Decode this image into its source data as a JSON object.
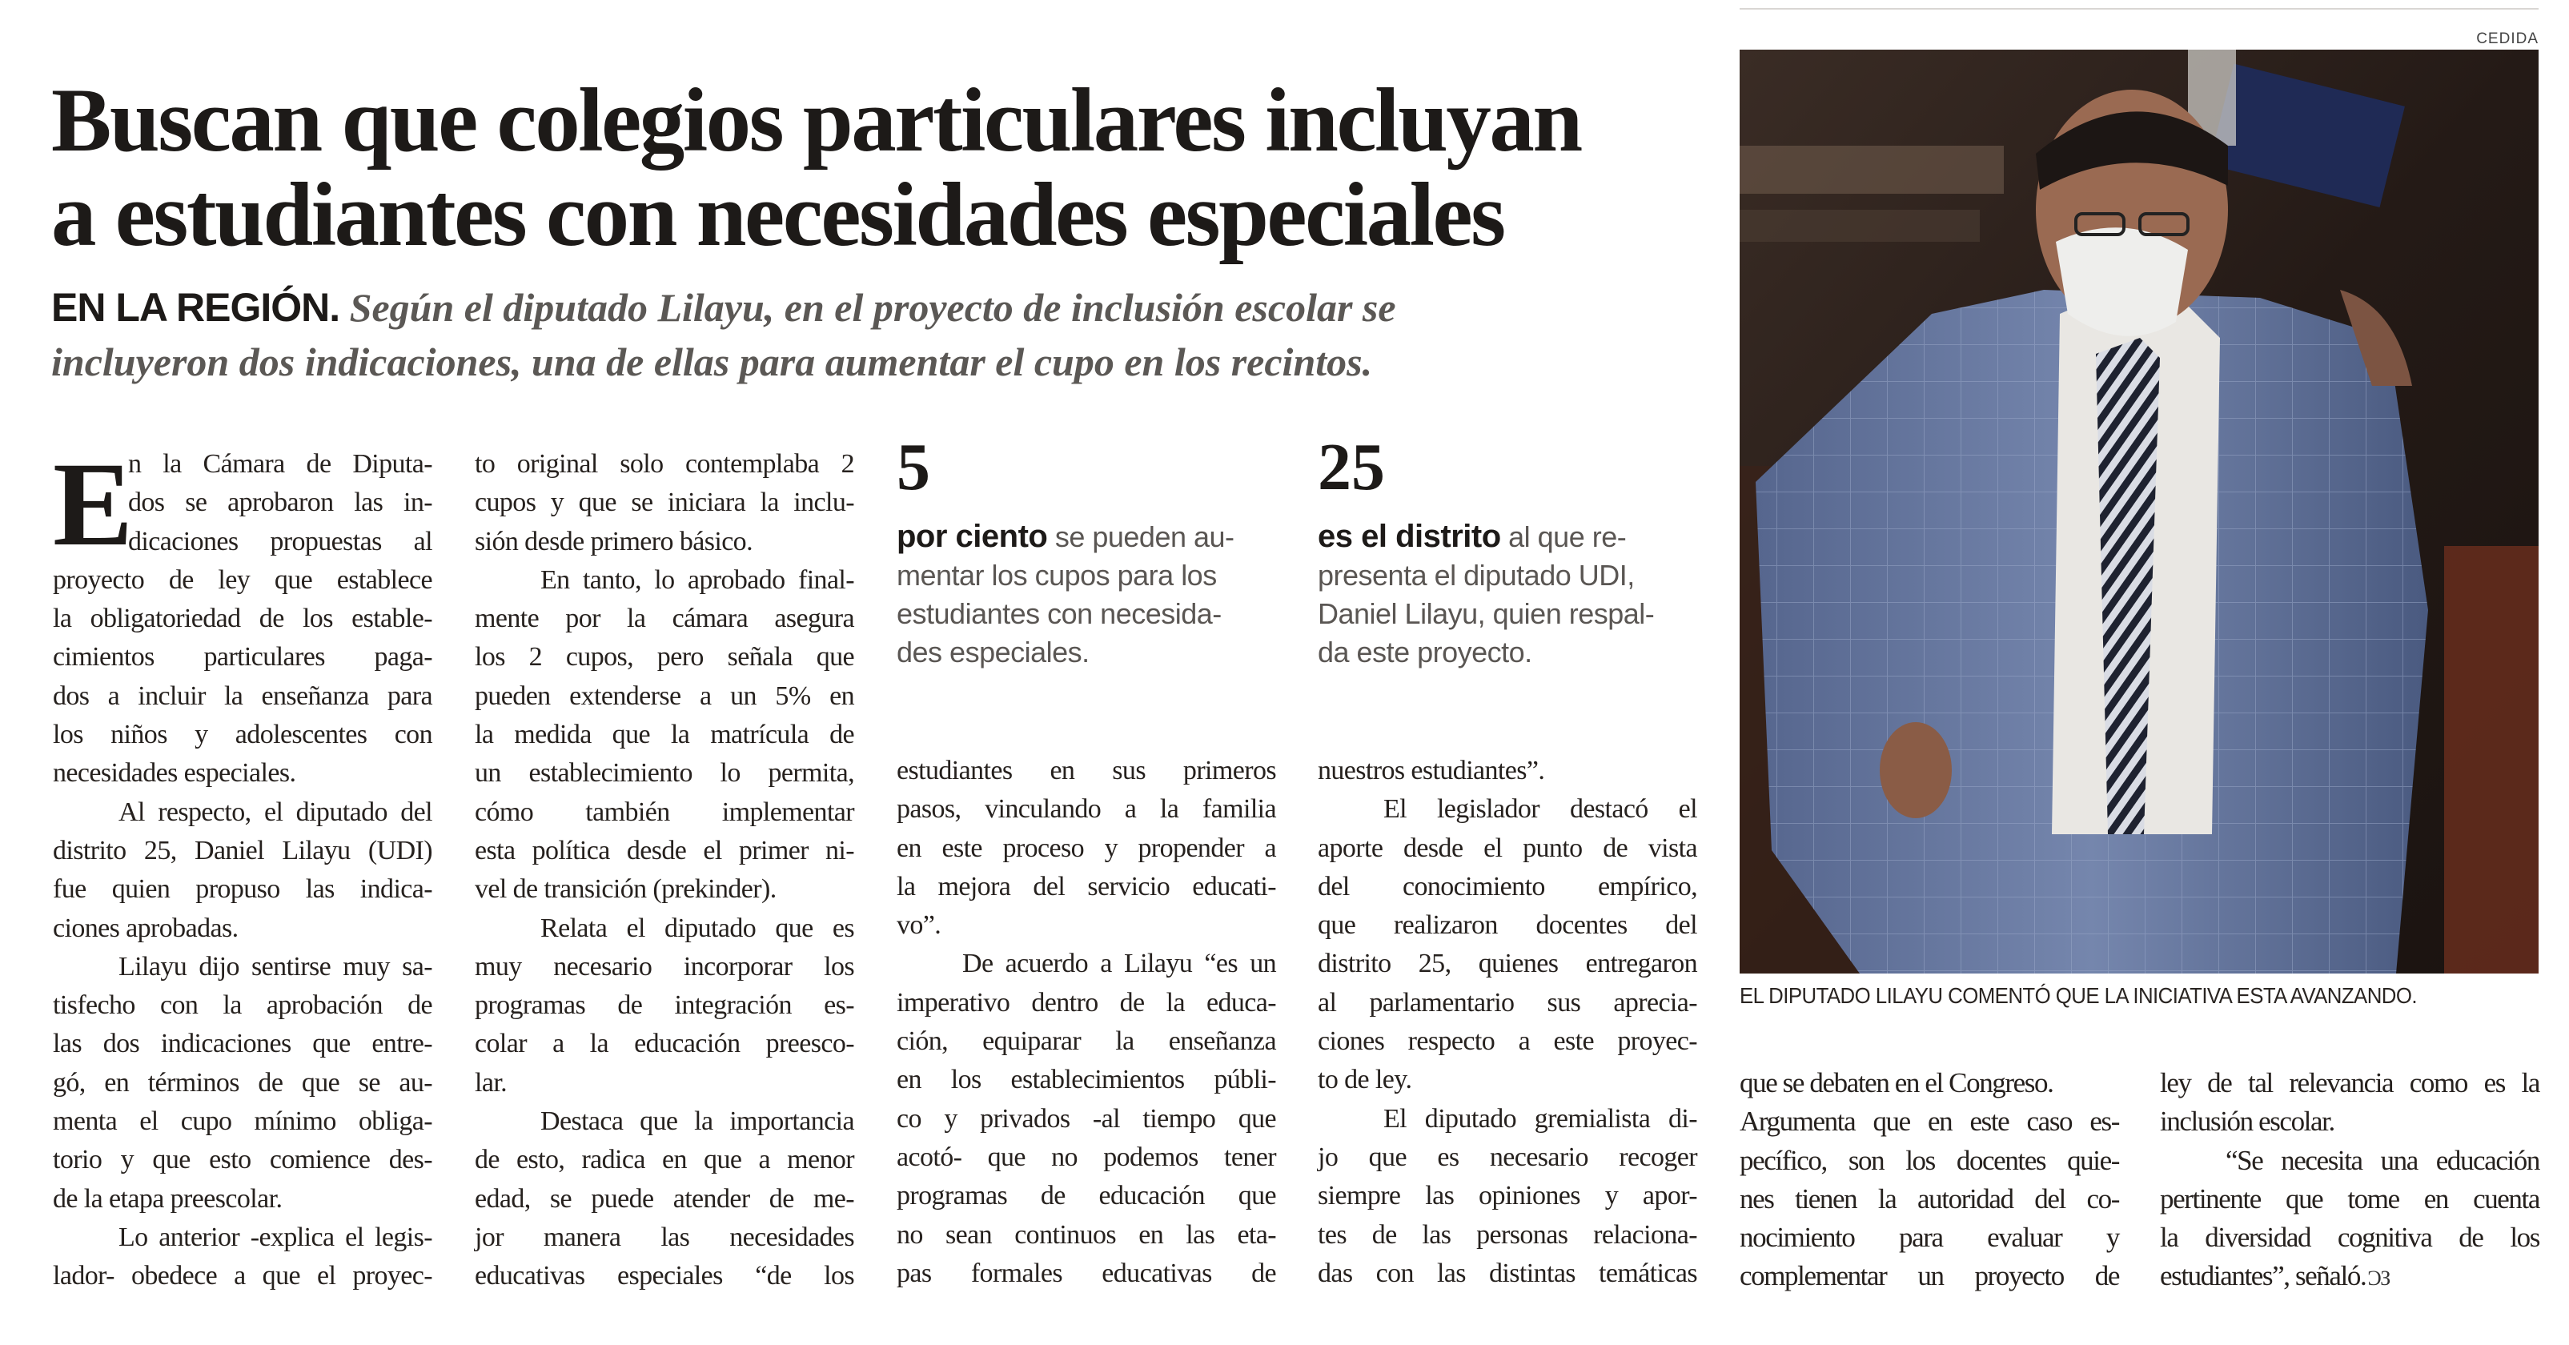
{
  "headline": {
    "lines": [
      "Buscan que colegios particulares incluyan",
      "a estudiantes con necesidades especiales"
    ]
  },
  "deck": {
    "kicker": "EN LA REGIÓN.",
    "line1": " Según el diputado Lilayu, en el proyecto de inclusión escolar se",
    "line2": "incluyeron dos indicaciones, una de ellas para aumentar el cupo en los recintos."
  },
  "photo": {
    "credit": "CEDIDA",
    "caption": "EL DIPUTADO LILAYU COMENTÓ QUE LA INICIATIVA ESTA AVANZANDO.",
    "colors": {
      "background": "#2a201b",
      "suit": "#6a7ba3",
      "carpet": "#6b2e1e"
    }
  },
  "stats": [
    {
      "number": "5",
      "lead": "por ciento",
      "lines": [
        " se pueden au-",
        "mentar los cupos para los",
        "estudiantes con necesida-",
        "des especiales."
      ]
    },
    {
      "number": "25",
      "lead": "es el distrito",
      "lines": [
        " al que re-",
        "presenta el diputado UDI,",
        "Daniel Lilayu, quien respal-",
        "da este proyecto."
      ]
    }
  ],
  "article": {
    "dropcap": "E",
    "columns": [
      {
        "paragraphs": [
          {
            "indent": false,
            "ends": true,
            "lines": [
              "n la Cámara de Diputa-",
              "dos se aprobaron las in-",
              "dicaciones propuestas al",
              "proyecto de ley que establece",
              "la obligatoriedad de los estable-",
              "cimientos particulares paga-",
              "dos a incluir la enseñanza para",
              "los niños y adolescentes con",
              "necesidades especiales."
            ]
          },
          {
            "indent": true,
            "ends": true,
            "lines": [
              "Al respecto, el diputado del",
              "distrito 25, Daniel Lilayu (UDI)",
              "fue quien propuso las indica-",
              "ciones aprobadas."
            ]
          },
          {
            "indent": true,
            "ends": true,
            "lines": [
              "Lilayu dijo sentirse muy sa-",
              "tisfecho con la aprobación de",
              "las dos indicaciones que entre-",
              "gó, en términos de que se au-",
              "menta el cupo mínimo obliga-",
              "torio y que esto comience des-",
              "de la etapa preescolar."
            ]
          },
          {
            "indent": true,
            "ends": false,
            "lines": [
              "Lo anterior -explica el legis-",
              "lador- obedece a que el proyec-"
            ]
          }
        ]
      },
      {
        "paragraphs": [
          {
            "indent": false,
            "ends": true,
            "lines": [
              "to original solo contemplaba 2",
              "cupos y que se iniciara la inclu-",
              "sión desde primero básico."
            ]
          },
          {
            "indent": true,
            "ends": true,
            "lines": [
              "En tanto, lo aprobado final-",
              "mente por la cámara asegura",
              "los 2 cupos, pero señala que",
              "pueden extenderse a un 5% en",
              "la medida que la matrícula de",
              "un establecimiento lo permita,",
              "cómo también implementar",
              "esta política desde el primer ni-",
              "vel de transición (prekinder)."
            ]
          },
          {
            "indent": true,
            "ends": true,
            "lines": [
              "Relata el diputado que es",
              "muy necesario incorporar los",
              "programas de integración es-",
              "colar a la educación preesco-",
              "lar."
            ]
          },
          {
            "indent": true,
            "ends": false,
            "lines": [
              "Destaca que la importancia",
              "de esto, radica en que a menor",
              "edad, se puede atender de me-",
              "jor manera las necesidades",
              "educativas especiales “de los"
            ]
          }
        ]
      },
      {
        "paragraphs": [
          {
            "indent": false,
            "ends": true,
            "lines": [
              "estudiantes en sus primeros",
              "pasos, vinculando a la familia",
              "en este proceso y propender a",
              "la mejora del servicio educati-",
              "vo”."
            ]
          },
          {
            "indent": true,
            "ends": false,
            "lines": [
              "De acuerdo a Lilayu “es un",
              "imperativo dentro de la educa-",
              "ción, equiparar la enseñanza",
              "en los establecimientos públi-",
              "co y privados -al tiempo que",
              "acotó- que no podemos tener",
              "programas de educación que",
              "no sean continuos en las eta-",
              "pas formales educativas de"
            ]
          }
        ]
      },
      {
        "paragraphs": [
          {
            "indent": false,
            "ends": true,
            "lines": [
              "nuestros estudiantes”."
            ]
          },
          {
            "indent": true,
            "ends": true,
            "lines": [
              "El legislador destacó el",
              "aporte desde el punto de vista",
              "del conocimiento empírico,",
              "que realizaron docentes del",
              "distrito 25, quienes entregaron",
              "al parlamentario sus aprecia-",
              "ciones respecto a este proyec-",
              "to de ley."
            ]
          },
          {
            "indent": true,
            "ends": false,
            "lines": [
              "El diputado gremialista di-",
              "jo que es necesario recoger",
              "siempre las opiniones y apor-",
              "tes de las personas relaciona-",
              "das con las distintas temáticas"
            ]
          }
        ]
      },
      {
        "paragraphs": [
          {
            "indent": false,
            "ends": true,
            "lines": [
              "que se debaten en el Congreso."
            ]
          },
          {
            "indent": false,
            "ends": false,
            "lines": [
              "Argumenta que en este caso es-",
              "pecífico, son los docentes quie-",
              "nes tienen la autoridad del co-",
              "nocimiento para evaluar y",
              "complementar un proyecto de"
            ]
          }
        ]
      },
      {
        "paragraphs": [
          {
            "indent": false,
            "ends": true,
            "lines": [
              "ley de tal relevancia como es la",
              "inclusión escolar."
            ]
          },
          {
            "indent": true,
            "ends": true,
            "lines": [
              "“Se necesita una educación",
              "pertinente que tome en cuenta",
              "la diversidad cognitiva de los",
              "estudiantes”, señaló."
            ]
          }
        ]
      }
    ],
    "end_mark_icon": "end-of-article-icon"
  }
}
